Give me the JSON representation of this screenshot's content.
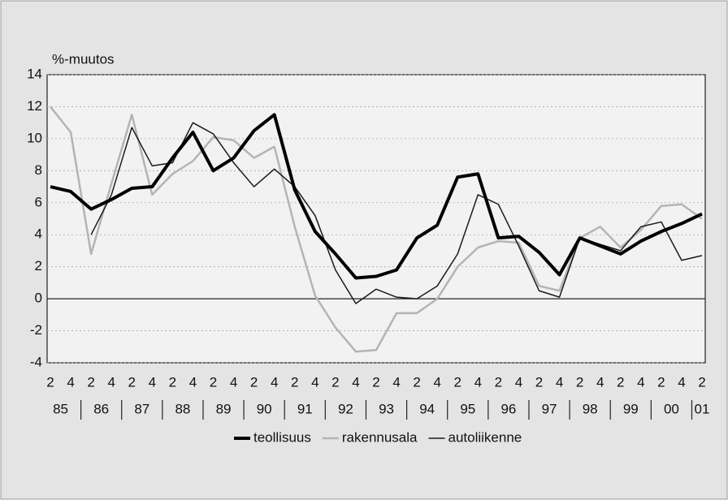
{
  "chart_data": {
    "type": "line",
    "y_label": "%-muutos",
    "categories": [
      "2",
      "4",
      "2",
      "4",
      "2",
      "4",
      "2",
      "4",
      "2",
      "4",
      "2",
      "4",
      "2",
      "4",
      "2",
      "4",
      "2",
      "4",
      "2",
      "4",
      "2",
      "4",
      "2",
      "4",
      "2",
      "4",
      "2",
      "4",
      "2",
      "4",
      "2",
      "4",
      "2"
    ],
    "year_labels": [
      "85",
      "86",
      "87",
      "88",
      "89",
      "90",
      "91",
      "92",
      "93",
      "94",
      "95",
      "96",
      "97",
      "98",
      "99",
      "00",
      "01"
    ],
    "series": [
      {
        "name": "teollisuus",
        "color": "#000000",
        "width": 4,
        "values": [
          7.0,
          6.7,
          5.6,
          6.2,
          6.9,
          7.0,
          8.8,
          10.4,
          8.0,
          8.8,
          10.5,
          11.5,
          6.8,
          4.2,
          2.8,
          1.3,
          1.4,
          1.8,
          3.8,
          4.6,
          7.6,
          7.8,
          3.8,
          3.9,
          2.9,
          1.5,
          3.8,
          3.3,
          2.8,
          3.6,
          4.2,
          4.7,
          5.3
        ]
      },
      {
        "name": "rakennusala",
        "color": "#b4b4b4",
        "width": 2.5,
        "values": [
          12.0,
          10.4,
          2.8,
          7.2,
          11.5,
          6.5,
          7.8,
          8.6,
          10.1,
          9.9,
          8.8,
          9.5,
          4.5,
          0.2,
          -1.8,
          -3.3,
          -3.2,
          -0.9,
          -0.9,
          0.0,
          2.0,
          3.2,
          3.6,
          3.5,
          0.8,
          0.5,
          3.8,
          4.5,
          3.2,
          4.3,
          5.8,
          5.9,
          5.0
        ]
      },
      {
        "name": "autoliikenne",
        "color": "#1a1a1a",
        "width": 1.5,
        "values": [
          null,
          null,
          4.0,
          6.5,
          10.7,
          8.3,
          8.5,
          11.0,
          10.3,
          8.5,
          7.0,
          8.1,
          7.0,
          5.2,
          1.8,
          -0.3,
          0.6,
          0.1,
          0.0,
          0.8,
          2.8,
          6.5,
          5.9,
          3.3,
          0.5,
          0.1,
          3.8,
          3.4,
          3.0,
          4.5,
          4.8,
          2.4,
          2.7
        ]
      }
    ],
    "ylim": [
      -4,
      14
    ],
    "yticks": [
      -4,
      -2,
      0,
      2,
      4,
      6,
      8,
      10,
      12,
      14
    ],
    "grid": true
  }
}
